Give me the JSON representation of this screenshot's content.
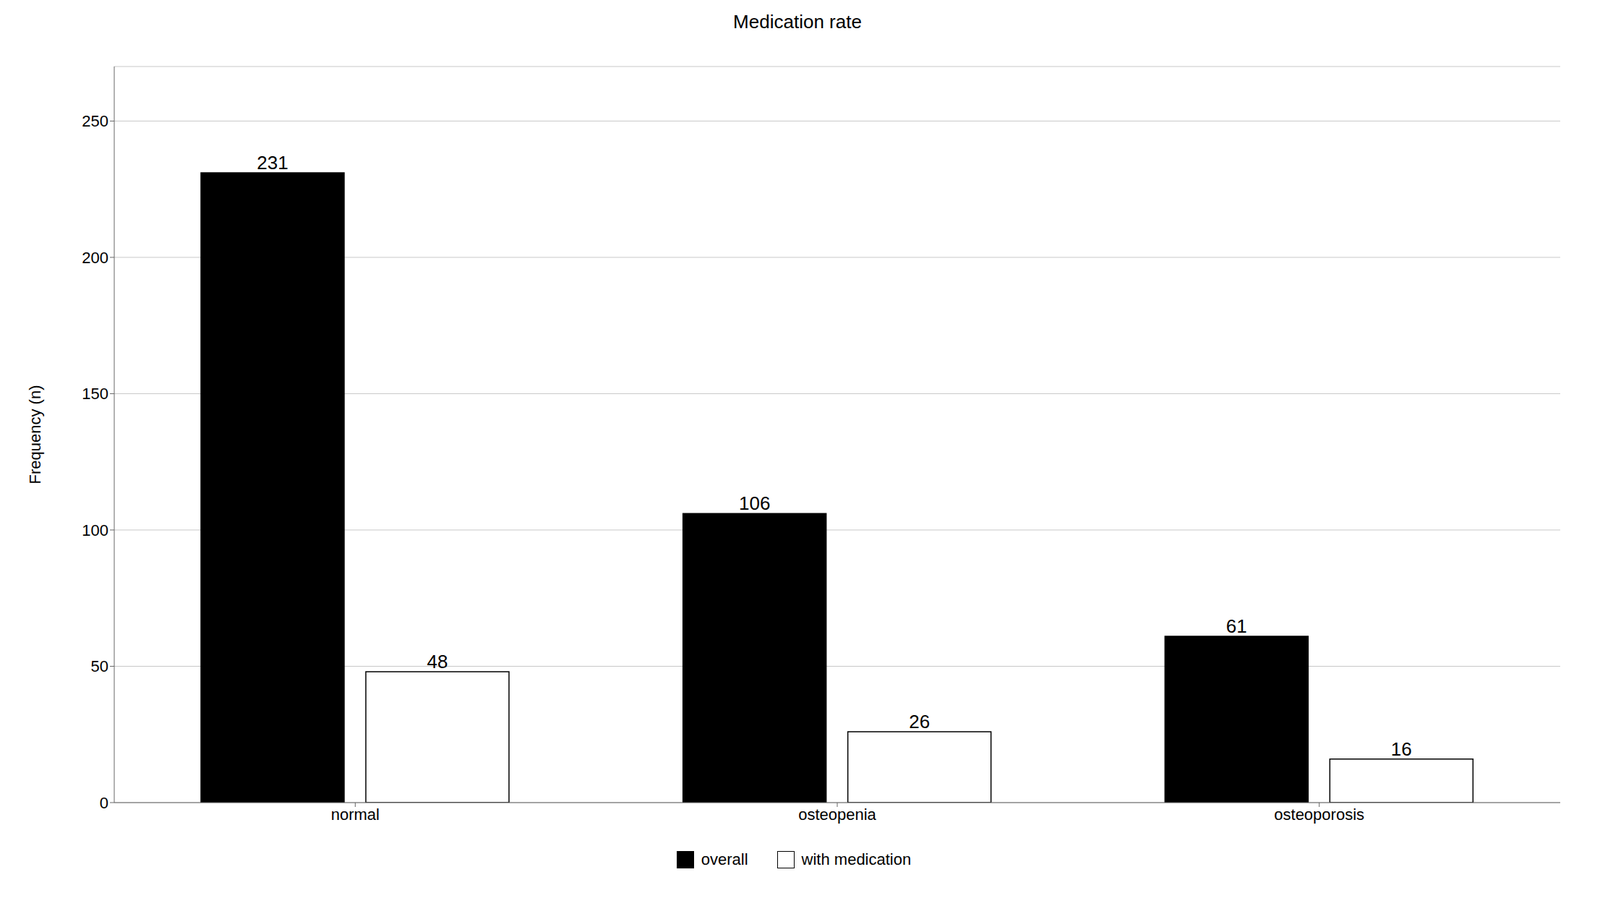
{
  "chart_data": {
    "type": "bar",
    "title": "Medication rate",
    "ylabel": "Frequency (n)",
    "categories": [
      "normal",
      "osteopenia",
      "osteoporosis"
    ],
    "series": [
      {
        "name": "overall",
        "color": "#000000",
        "values": [
          231,
          106,
          61
        ]
      },
      {
        "name": "with medication",
        "color": "#ffffff",
        "values": [
          48,
          26,
          16
        ]
      }
    ],
    "ylim": [
      0,
      270
    ],
    "yticks": [
      0,
      50,
      100,
      150,
      200,
      250
    ],
    "grid": true,
    "legend": "bottom",
    "data_labels": true
  }
}
